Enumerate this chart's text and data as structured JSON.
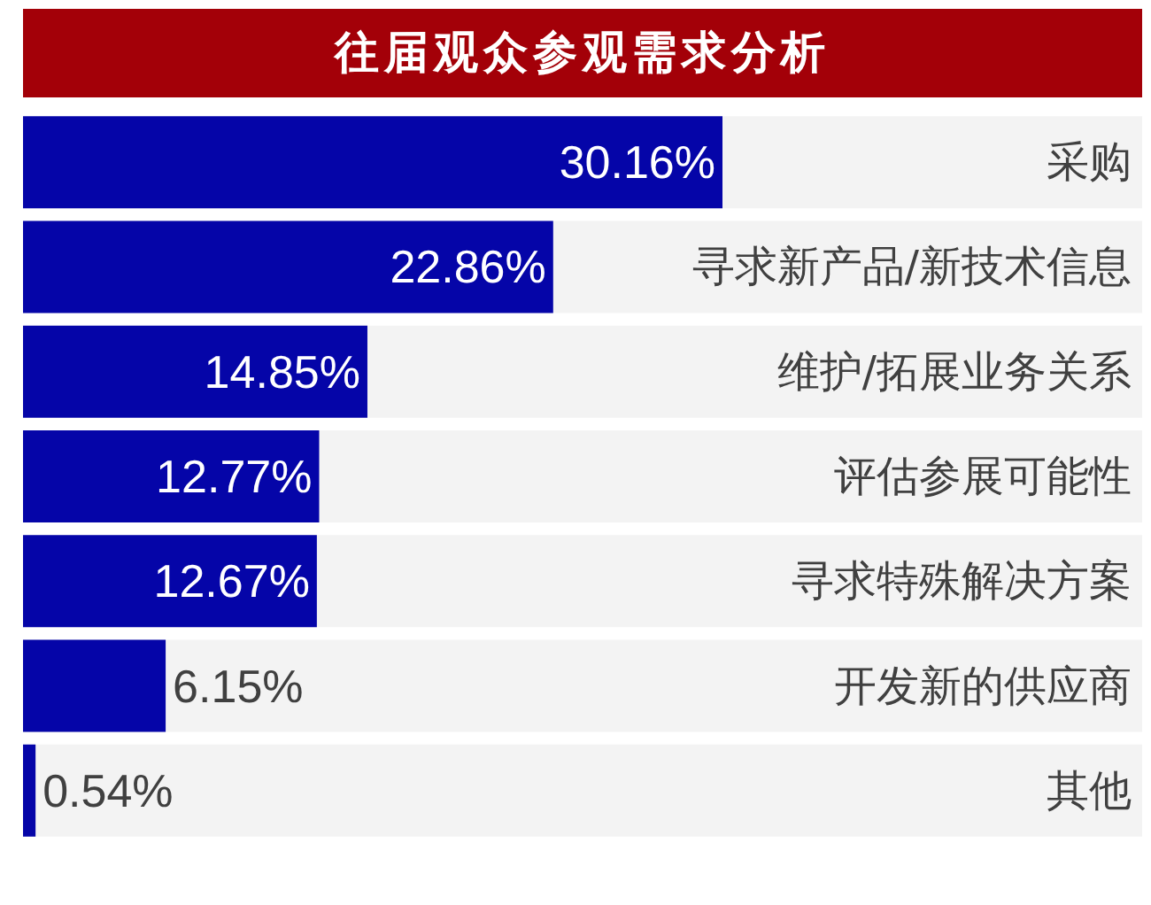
{
  "chart_data": {
    "type": "bar",
    "orientation": "horizontal",
    "title": "往届观众参观需求分析",
    "categories": [
      "采购",
      "寻求新产品/新技术信息",
      "维护/拓展业务关系",
      "评估参展可能性",
      "寻求特殊解决方案",
      "开发新的供应商",
      "其他"
    ],
    "values": [
      30.16,
      22.86,
      14.85,
      12.77,
      12.67,
      6.15,
      0.54
    ],
    "value_labels": [
      "30.16%",
      "22.86%",
      "14.85%",
      "12.77%",
      "12.67%",
      "6.15%",
      "0.54%"
    ],
    "color": "#0505a8"
  }
}
